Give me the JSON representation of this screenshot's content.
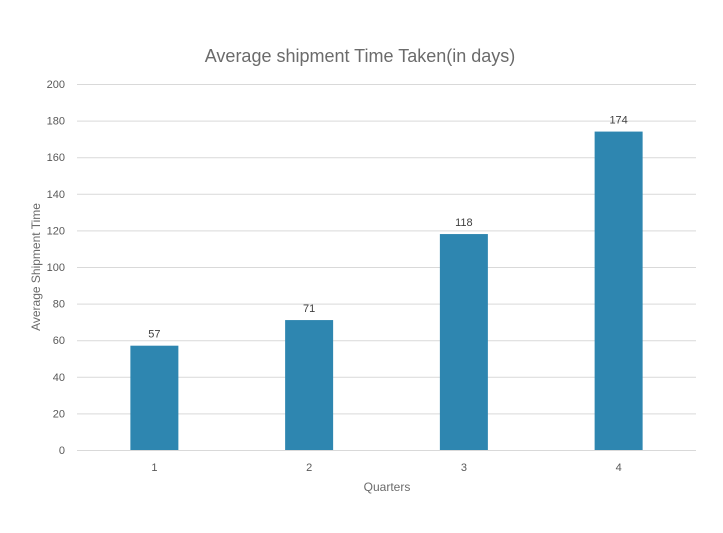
{
  "chart_data": {
    "type": "bar",
    "title": "Average shipment Time Taken(in days)",
    "xlabel": "Quarters",
    "ylabel": "Average Shipment Time",
    "categories": [
      "1",
      "2",
      "3",
      "4"
    ],
    "values": [
      57,
      71,
      118,
      174
    ],
    "data_labels": [
      "57",
      "71",
      "118",
      "174"
    ],
    "ylim": [
      0,
      200
    ],
    "yticks": [
      0,
      20,
      40,
      60,
      80,
      100,
      120,
      140,
      160,
      180,
      200
    ],
    "grid": true,
    "legend": "none",
    "bar_color": "#2e86b0"
  }
}
